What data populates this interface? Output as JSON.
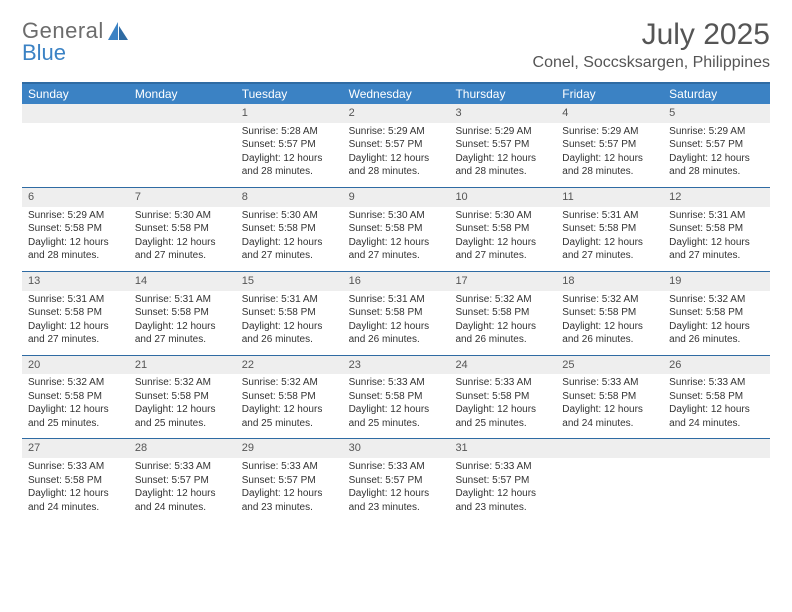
{
  "brand": {
    "word1": "General",
    "word2": "Blue"
  },
  "title": "July 2025",
  "location": "Conel, Soccsksargen, Philippines",
  "colors": {
    "header_bg": "#3b82c4",
    "header_border": "#2f6ba3",
    "daynum_bg": "#eeeeee",
    "text": "#333333",
    "title_text": "#555555",
    "page_bg": "#ffffff"
  },
  "typography": {
    "title_fontsize": 30,
    "location_fontsize": 16,
    "dow_fontsize": 12,
    "body_fontsize": 10
  },
  "daysOfWeek": [
    "Sunday",
    "Monday",
    "Tuesday",
    "Wednesday",
    "Thursday",
    "Friday",
    "Saturday"
  ],
  "weeks": [
    [
      {
        "day": "",
        "sunrise": "",
        "sunset": "",
        "daylight": ""
      },
      {
        "day": "",
        "sunrise": "",
        "sunset": "",
        "daylight": ""
      },
      {
        "day": "1",
        "sunrise": "Sunrise: 5:28 AM",
        "sunset": "Sunset: 5:57 PM",
        "daylight": "Daylight: 12 hours and 28 minutes."
      },
      {
        "day": "2",
        "sunrise": "Sunrise: 5:29 AM",
        "sunset": "Sunset: 5:57 PM",
        "daylight": "Daylight: 12 hours and 28 minutes."
      },
      {
        "day": "3",
        "sunrise": "Sunrise: 5:29 AM",
        "sunset": "Sunset: 5:57 PM",
        "daylight": "Daylight: 12 hours and 28 minutes."
      },
      {
        "day": "4",
        "sunrise": "Sunrise: 5:29 AM",
        "sunset": "Sunset: 5:57 PM",
        "daylight": "Daylight: 12 hours and 28 minutes."
      },
      {
        "day": "5",
        "sunrise": "Sunrise: 5:29 AM",
        "sunset": "Sunset: 5:57 PM",
        "daylight": "Daylight: 12 hours and 28 minutes."
      }
    ],
    [
      {
        "day": "6",
        "sunrise": "Sunrise: 5:29 AM",
        "sunset": "Sunset: 5:58 PM",
        "daylight": "Daylight: 12 hours and 28 minutes."
      },
      {
        "day": "7",
        "sunrise": "Sunrise: 5:30 AM",
        "sunset": "Sunset: 5:58 PM",
        "daylight": "Daylight: 12 hours and 27 minutes."
      },
      {
        "day": "8",
        "sunrise": "Sunrise: 5:30 AM",
        "sunset": "Sunset: 5:58 PM",
        "daylight": "Daylight: 12 hours and 27 minutes."
      },
      {
        "day": "9",
        "sunrise": "Sunrise: 5:30 AM",
        "sunset": "Sunset: 5:58 PM",
        "daylight": "Daylight: 12 hours and 27 minutes."
      },
      {
        "day": "10",
        "sunrise": "Sunrise: 5:30 AM",
        "sunset": "Sunset: 5:58 PM",
        "daylight": "Daylight: 12 hours and 27 minutes."
      },
      {
        "day": "11",
        "sunrise": "Sunrise: 5:31 AM",
        "sunset": "Sunset: 5:58 PM",
        "daylight": "Daylight: 12 hours and 27 minutes."
      },
      {
        "day": "12",
        "sunrise": "Sunrise: 5:31 AM",
        "sunset": "Sunset: 5:58 PM",
        "daylight": "Daylight: 12 hours and 27 minutes."
      }
    ],
    [
      {
        "day": "13",
        "sunrise": "Sunrise: 5:31 AM",
        "sunset": "Sunset: 5:58 PM",
        "daylight": "Daylight: 12 hours and 27 minutes."
      },
      {
        "day": "14",
        "sunrise": "Sunrise: 5:31 AM",
        "sunset": "Sunset: 5:58 PM",
        "daylight": "Daylight: 12 hours and 27 minutes."
      },
      {
        "day": "15",
        "sunrise": "Sunrise: 5:31 AM",
        "sunset": "Sunset: 5:58 PM",
        "daylight": "Daylight: 12 hours and 26 minutes."
      },
      {
        "day": "16",
        "sunrise": "Sunrise: 5:31 AM",
        "sunset": "Sunset: 5:58 PM",
        "daylight": "Daylight: 12 hours and 26 minutes."
      },
      {
        "day": "17",
        "sunrise": "Sunrise: 5:32 AM",
        "sunset": "Sunset: 5:58 PM",
        "daylight": "Daylight: 12 hours and 26 minutes."
      },
      {
        "day": "18",
        "sunrise": "Sunrise: 5:32 AM",
        "sunset": "Sunset: 5:58 PM",
        "daylight": "Daylight: 12 hours and 26 minutes."
      },
      {
        "day": "19",
        "sunrise": "Sunrise: 5:32 AM",
        "sunset": "Sunset: 5:58 PM",
        "daylight": "Daylight: 12 hours and 26 minutes."
      }
    ],
    [
      {
        "day": "20",
        "sunrise": "Sunrise: 5:32 AM",
        "sunset": "Sunset: 5:58 PM",
        "daylight": "Daylight: 12 hours and 25 minutes."
      },
      {
        "day": "21",
        "sunrise": "Sunrise: 5:32 AM",
        "sunset": "Sunset: 5:58 PM",
        "daylight": "Daylight: 12 hours and 25 minutes."
      },
      {
        "day": "22",
        "sunrise": "Sunrise: 5:32 AM",
        "sunset": "Sunset: 5:58 PM",
        "daylight": "Daylight: 12 hours and 25 minutes."
      },
      {
        "day": "23",
        "sunrise": "Sunrise: 5:33 AM",
        "sunset": "Sunset: 5:58 PM",
        "daylight": "Daylight: 12 hours and 25 minutes."
      },
      {
        "day": "24",
        "sunrise": "Sunrise: 5:33 AM",
        "sunset": "Sunset: 5:58 PM",
        "daylight": "Daylight: 12 hours and 25 minutes."
      },
      {
        "day": "25",
        "sunrise": "Sunrise: 5:33 AM",
        "sunset": "Sunset: 5:58 PM",
        "daylight": "Daylight: 12 hours and 24 minutes."
      },
      {
        "day": "26",
        "sunrise": "Sunrise: 5:33 AM",
        "sunset": "Sunset: 5:58 PM",
        "daylight": "Daylight: 12 hours and 24 minutes."
      }
    ],
    [
      {
        "day": "27",
        "sunrise": "Sunrise: 5:33 AM",
        "sunset": "Sunset: 5:58 PM",
        "daylight": "Daylight: 12 hours and 24 minutes."
      },
      {
        "day": "28",
        "sunrise": "Sunrise: 5:33 AM",
        "sunset": "Sunset: 5:57 PM",
        "daylight": "Daylight: 12 hours and 24 minutes."
      },
      {
        "day": "29",
        "sunrise": "Sunrise: 5:33 AM",
        "sunset": "Sunset: 5:57 PM",
        "daylight": "Daylight: 12 hours and 23 minutes."
      },
      {
        "day": "30",
        "sunrise": "Sunrise: 5:33 AM",
        "sunset": "Sunset: 5:57 PM",
        "daylight": "Daylight: 12 hours and 23 minutes."
      },
      {
        "day": "31",
        "sunrise": "Sunrise: 5:33 AM",
        "sunset": "Sunset: 5:57 PM",
        "daylight": "Daylight: 12 hours and 23 minutes."
      },
      {
        "day": "",
        "sunrise": "",
        "sunset": "",
        "daylight": ""
      },
      {
        "day": "",
        "sunrise": "",
        "sunset": "",
        "daylight": ""
      }
    ]
  ]
}
